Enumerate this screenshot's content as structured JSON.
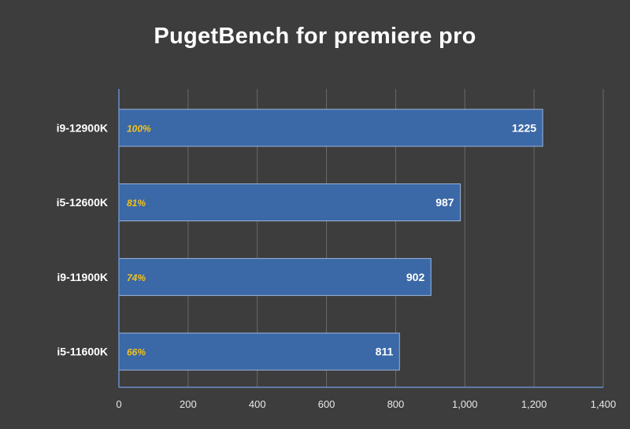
{
  "chart_data": {
    "type": "bar",
    "orientation": "horizontal",
    "title": "PugetBench for premiere pro",
    "categories": [
      "i9-12900K",
      "i5-12600K",
      "i9-11900K",
      "i5-11600K"
    ],
    "values": [
      1225,
      987,
      902,
      811
    ],
    "percent_labels": [
      "100%",
      "81%",
      "74%",
      "66%"
    ],
    "xlim": [
      0,
      1400
    ],
    "xticks": [
      0,
      200,
      400,
      600,
      800,
      1000,
      1200,
      1400
    ],
    "xtick_labels": [
      "0",
      "200",
      "400",
      "600",
      "800",
      "1,000",
      "1,200",
      "1,400"
    ],
    "grid": "vertical",
    "colors": {
      "background": "#3d3d3d",
      "bar": "#3b68a6",
      "bar_edge": "#9cb6dc",
      "grid": "#6a6a6a",
      "axis": "#6b8fc6",
      "percent": "#f2c21b",
      "text": "#ffffff"
    }
  }
}
